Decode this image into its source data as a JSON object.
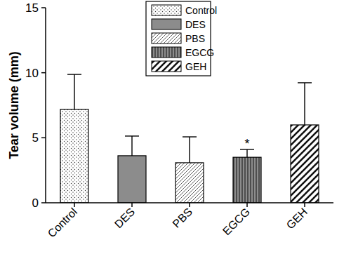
{
  "chart_data": {
    "type": "bar",
    "y_label": "Tear volume (mm)",
    "categories": [
      "Control",
      "DES",
      "PBS",
      "EGCG",
      "GEH"
    ],
    "values": [
      7.18,
      3.62,
      3.08,
      3.5,
      5.99
    ],
    "errors": [
      2.69,
      1.51,
      1.99,
      0.6,
      3.24
    ],
    "colors": [
      "#ffffff",
      "#8c8c8c",
      "#ffffff",
      "#8c8c8c",
      "#ffffff"
    ],
    "annotations": [
      {
        "text": "*",
        "x": "EGCG"
      }
    ],
    "ylim": [
      0,
      15
    ],
    "yticks": [
      0,
      5,
      10,
      15
    ],
    "legend": "top",
    "grid": false
  }
}
